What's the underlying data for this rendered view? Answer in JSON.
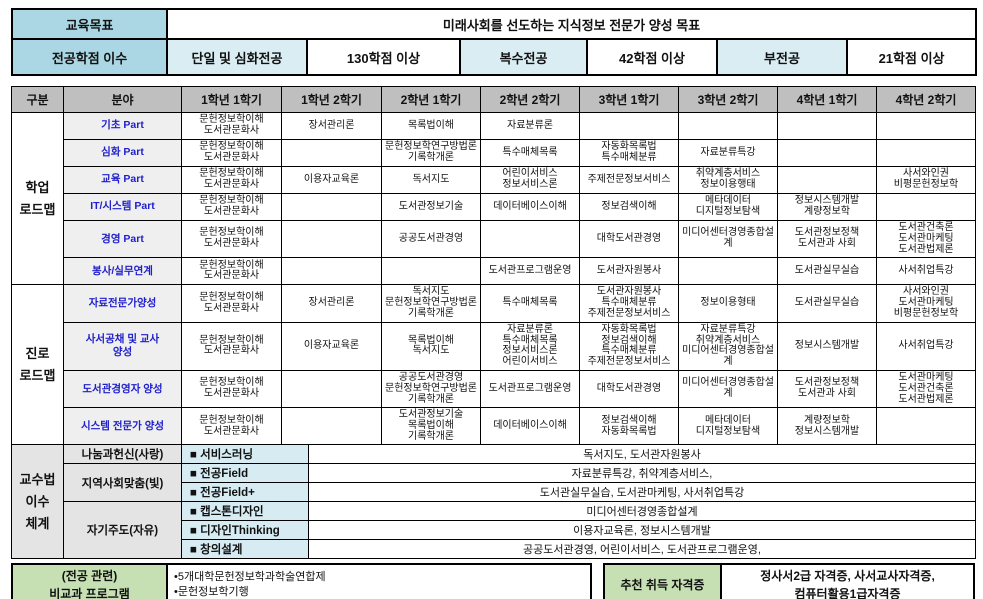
{
  "colors": {
    "header_cyan": "#aad7e3",
    "pale_blue": "#d9edf3",
    "header_gray": "#bfbfbf",
    "field_gray": "#efefef",
    "pedagogy_gray": "#e4e4e4",
    "method_cyan": "#d6ebf2",
    "bottom_green": "#c6e0b4",
    "field_text_blue": "#2020cc",
    "border_black": "#000000"
  },
  "top": {
    "goal_label": "교육목표",
    "goal_value": "미래사회를 선도하는 지식정보 전문가 양성 목표",
    "credits_label": "전공학점 이수",
    "single_major": "단일 및 심화전공",
    "single_major_credits": "130학점 이상",
    "double_major": "복수전공",
    "double_major_credits": "42학점 이상",
    "minor": "부전공",
    "minor_credits": "21학점 이상"
  },
  "roadmap": {
    "headers": [
      "구분",
      "분야",
      "1학년 1학기",
      "1학년 2학기",
      "2학년 1학기",
      "2학년 2학기",
      "3학년 1학기",
      "3학년 2학기",
      "4학년 1학기",
      "4학년 2학기"
    ],
    "sections": [
      {
        "group": [
          "학업",
          "로드맵"
        ],
        "row_class": "study-row",
        "rows": [
          {
            "field": "기초 Part",
            "cells": [
              [
                "문헌정보학이해",
                "도서관문화사"
              ],
              [
                "장서관리론"
              ],
              [
                "목록법이해"
              ],
              [
                "자료분류론"
              ],
              "",
              "",
              "",
              ""
            ]
          },
          {
            "field": "심화 Part",
            "cells": [
              [
                "문헌정보학이해",
                "도서관문화사"
              ],
              "",
              [
                "문헌정보학연구방법론",
                "기록학개론"
              ],
              [
                "특수매체목록"
              ],
              [
                "자동화목록법",
                "특수매체분류"
              ],
              [
                "자료분류특강"
              ],
              "",
              ""
            ]
          },
          {
            "field": "교육 Part",
            "cells": [
              [
                "문헌정보학이해",
                "도서관문화사"
              ],
              [
                "이용자교육론"
              ],
              [
                "독서지도"
              ],
              [
                "어린이서비스",
                "정보서비스론"
              ],
              [
                "주제전문정보서비스"
              ],
              [
                "취약계층서비스",
                "정보이용행태"
              ],
              "",
              [
                "사서와인권",
                "비평문헌정보학"
              ]
            ]
          },
          {
            "field": "IT/시스템 Part",
            "cells": [
              [
                "문헌정보학이해",
                "도서관문화사"
              ],
              "",
              [
                "도서관정보기술"
              ],
              [
                "데이터베이스이해"
              ],
              [
                "정보검색이해"
              ],
              [
                "메타데이터",
                "디지털정보탐색"
              ],
              [
                "정보시스템개발",
                "계량정보학"
              ],
              ""
            ]
          },
          {
            "field": "경영 Part",
            "cells": [
              [
                "문헌정보학이해",
                "도서관문화사"
              ],
              "",
              [
                "공공도서관경영"
              ],
              "",
              [
                "대학도서관경영"
              ],
              [
                "미디어센터경영종합설계"
              ],
              [
                "도서관정보정책",
                "도서관과 사회"
              ],
              [
                "도서관건축론",
                "도서관마케팅",
                "도서관법제론"
              ]
            ]
          },
          {
            "field": "봉사/실무연계",
            "cells": [
              [
                "문헌정보학이해",
                "도서관문화사"
              ],
              "",
              "",
              [
                "도서관프로그램운영"
              ],
              [
                "도서관자원봉사"
              ],
              "",
              [
                "도서관실무실습"
              ],
              [
                "사서취업특강"
              ]
            ]
          }
        ]
      },
      {
        "group": [
          "진로",
          "로드맵"
        ],
        "row_class": "career-row",
        "rows": [
          {
            "field": "자료전문가양성",
            "cells": [
              [
                "문헌정보학이해",
                "도서관문화사"
              ],
              [
                "장서관리론"
              ],
              [
                "독서지도",
                "문헌정보학연구방법론",
                "기록학개론"
              ],
              [
                "특수매체목록"
              ],
              [
                "도서관자원봉사",
                "특수매체분류",
                "주제전문정보서비스"
              ],
              [
                "정보이용형태"
              ],
              [
                "도서관실무실습"
              ],
              [
                "사서와인권",
                "도서관마케팅",
                "비평문헌정보학"
              ]
            ]
          },
          {
            "field": [
              "사서공채 및 교사",
              "양성"
            ],
            "cells": [
              [
                "문헌정보학이해",
                "도서관문화사"
              ],
              [
                "이용자교육론"
              ],
              [
                "목록법이해",
                "독서지도"
              ],
              [
                "자료분류론",
                "특수매체목록",
                "정보서비스론",
                "어린이서비스"
              ],
              [
                "자동화목록법",
                "정보검색이해",
                "특수매체분류",
                "주제전문정보서비스"
              ],
              [
                "자료분류특강",
                "취약계층서비스",
                "미디어센터경영종합설계"
              ],
              [
                "정보시스템개발"
              ],
              [
                "사서취업특강"
              ]
            ]
          },
          {
            "field": "도서관경영자 양성",
            "cells": [
              [
                "문헌정보학이해",
                "도서관문화사"
              ],
              "",
              [
                "공공도서관경영",
                "문헌정보학연구방법론",
                "기록학개론"
              ],
              [
                "도서관프로그램운영"
              ],
              [
                "대학도서관경영"
              ],
              [
                "미디어센터경영종합설계"
              ],
              [
                "도서관정보정책",
                "도서관과 사회"
              ],
              [
                "도서관마케팅",
                "도서관건축론",
                "도서관법제론"
              ]
            ]
          },
          {
            "field": "시스템 전문가 양성",
            "cells": [
              [
                "문헌정보학이해",
                "도서관문화사"
              ],
              "",
              [
                "도서관정보기술",
                "목록법이해",
                "기록학개론"
              ],
              [
                "데이터베이스이해"
              ],
              [
                "정보검색이해",
                "자동화목록법"
              ],
              [
                "메타데이터",
                "디지털정보탐색"
              ],
              [
                "계량정보학",
                "정보시스템개발"
              ],
              ""
            ]
          }
        ]
      }
    ]
  },
  "pedagogy": {
    "group": [
      "교수법",
      "이수",
      "체계"
    ],
    "rows": [
      {
        "category": "나눔과헌신(사랑)",
        "items": [
          {
            "label": "■ 서비스러닝",
            "content": "독서지도, 도서관자원봉사"
          }
        ]
      },
      {
        "category": "지역사회맞춤(빛)",
        "items": [
          {
            "label": "■ 전공Field",
            "content": "자료분류특강, 취약계층서비스,"
          },
          {
            "label": "■ 전공Field+",
            "content": "도서관실무실습, 도서관마케팅, 사서취업특강"
          }
        ]
      },
      {
        "category": "자기주도(자유)",
        "items": [
          {
            "label": "■ 캡스톤디자인",
            "content": "미디어센터경영종합설계"
          },
          {
            "label": "■ 디자인Thinking",
            "content": "이용자교육론, 정보시스템개발"
          },
          {
            "label": "■ 창의설계",
            "content": "공공도서관경영, 어린이서비스, 도서관프로그램운영,"
          }
        ]
      }
    ]
  },
  "bottom": {
    "program_label": [
      "(전공 관련)",
      "비교과 프로그램"
    ],
    "program_items": [
      "•5개대학문헌정보학과학술연합제",
      "•문헌정보학기행"
    ],
    "cert_label": "추천 취득 자격증",
    "cert_value": [
      "정사서2급 자격증, 사서교사자격증,",
      "컴퓨터활용1급자격증"
    ]
  }
}
